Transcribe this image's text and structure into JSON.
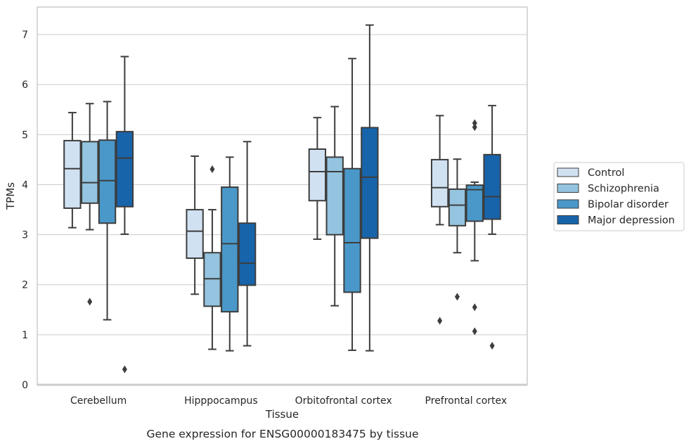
{
  "chart_data": {
    "type": "box",
    "xlabel": "Tissue",
    "ylabel": "TPMs",
    "caption": "Gene expression for ENSG00000183475 by tissue",
    "ylim": [
      0,
      7.55
    ],
    "yticks": [
      0,
      1,
      2,
      3,
      4,
      5,
      6,
      7
    ],
    "grid": true,
    "legend_placement": "right",
    "categories": [
      "Cerebellum",
      "Hipppocampus",
      "Orbitofrontal cortex",
      "Prefrontal cortex"
    ],
    "series": [
      {
        "name": "Control",
        "color": "#d0e1f2",
        "boxes": [
          {
            "whislo": 3.14,
            "q1": 3.53,
            "med": 4.32,
            "q3": 4.88,
            "whishi": 5.44,
            "fliers": []
          },
          {
            "whislo": 1.81,
            "q1": 2.53,
            "med": 3.07,
            "q3": 3.5,
            "whishi": 4.57,
            "fliers": []
          },
          {
            "whislo": 2.91,
            "q1": 3.68,
            "med": 4.26,
            "q3": 4.71,
            "whishi": 5.34,
            "fliers": []
          },
          {
            "whislo": 3.2,
            "q1": 3.56,
            "med": 3.94,
            "q3": 4.5,
            "whishi": 5.38,
            "fliers": [
              1.28
            ]
          }
        ]
      },
      {
        "name": "Schizophrenia",
        "color": "#94c4df",
        "boxes": [
          {
            "whislo": 3.1,
            "q1": 3.63,
            "med": 4.04,
            "q3": 4.86,
            "whishi": 5.62,
            "fliers": [
              1.66
            ]
          },
          {
            "whislo": 0.71,
            "q1": 1.57,
            "med": 2.12,
            "q3": 2.64,
            "whishi": 3.5,
            "fliers": [
              4.31
            ]
          },
          {
            "whislo": 1.58,
            "q1": 3.0,
            "med": 4.26,
            "q3": 4.55,
            "whishi": 5.56,
            "fliers": []
          },
          {
            "whislo": 2.64,
            "q1": 3.18,
            "med": 3.59,
            "q3": 3.91,
            "whishi": 4.51,
            "fliers": [
              1.76
            ]
          }
        ]
      },
      {
        "name": "Bipolar disorder",
        "color": "#4a98c9",
        "boxes": [
          {
            "whislo": 1.3,
            "q1": 3.23,
            "med": 4.08,
            "q3": 4.89,
            "whishi": 5.66,
            "fliers": []
          },
          {
            "whislo": 0.68,
            "q1": 1.46,
            "med": 2.82,
            "q3": 3.95,
            "whishi": 4.55,
            "fliers": []
          },
          {
            "whislo": 0.69,
            "q1": 1.85,
            "med": 2.84,
            "q3": 4.32,
            "whishi": 6.52,
            "fliers": []
          },
          {
            "whislo": 2.48,
            "q1": 3.27,
            "med": 3.9,
            "q3": 3.99,
            "whishi": 4.05,
            "fliers": [
              5.23,
              5.15,
              1.55,
              1.07
            ]
          }
        ]
      },
      {
        "name": "Major depression",
        "color": "#1764ab",
        "boxes": [
          {
            "whislo": 3.01,
            "q1": 3.56,
            "med": 4.53,
            "q3": 5.06,
            "whishi": 6.56,
            "fliers": [
              0.31
            ]
          },
          {
            "whislo": 0.78,
            "q1": 1.99,
            "med": 2.43,
            "q3": 3.23,
            "whishi": 4.86,
            "fliers": []
          },
          {
            "whislo": 0.68,
            "q1": 2.93,
            "med": 4.15,
            "q3": 5.14,
            "whishi": 7.19,
            "fliers": []
          },
          {
            "whislo": 3.01,
            "q1": 3.31,
            "med": 3.76,
            "q3": 4.6,
            "whishi": 5.58,
            "fliers": [
              0.78
            ]
          }
        ]
      }
    ]
  }
}
